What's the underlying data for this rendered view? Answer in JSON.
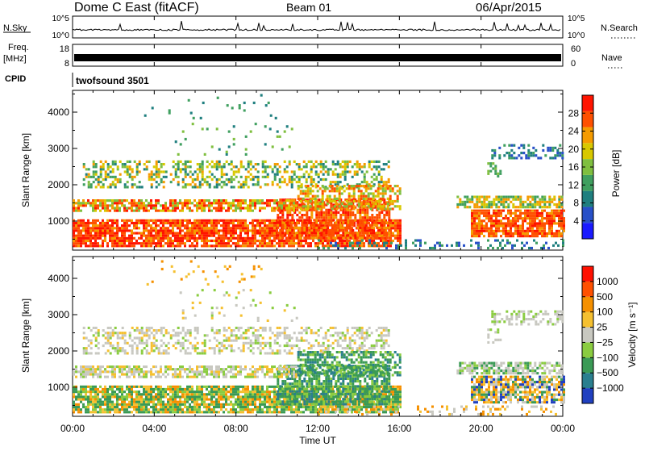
{
  "header": {
    "title": "Dome C East (fitACF)",
    "beam": "Beam 01",
    "date": "06/Apr/2015"
  },
  "status_panels": {
    "nsky_label": "N.Sky",
    "nsky_ticks": [
      "10^5",
      "10^0"
    ],
    "nsearch_label": "N.Search",
    "nsearch_ticks": [
      "10^5",
      "10^0"
    ],
    "freq_label_line1": "Freq.",
    "freq_label_line2": "[MHz]",
    "freq_ticks": [
      "18",
      "8"
    ],
    "nave_label": "Nave",
    "nave_ticks": [
      "60",
      "0"
    ],
    "cpid_label": "CPID",
    "cpid_value": "twofsound 3501"
  },
  "chart_data": [
    {
      "type": "heatmap",
      "panel": "power",
      "ylabel": "Slant Range [km]",
      "ylim": [
        200,
        4600
      ],
      "yticks": [
        1000,
        2000,
        3000,
        4000
      ],
      "xlim_hours": [
        0,
        24
      ],
      "colorbar": {
        "label": "Power [dB]",
        "range": [
          0,
          32
        ],
        "tick_labels": [
          "4",
          "8",
          "12",
          "16",
          "20",
          "24",
          "28"
        ],
        "tick_values": [
          4,
          8,
          12,
          16,
          20,
          24,
          28
        ],
        "colors": [
          "#1a1aff",
          "#2850c8",
          "#1f7f7f",
          "#3f9f5f",
          "#7fbf3f",
          "#d8c800",
          "#f59b00",
          "#ff5000",
          "#ff1400"
        ]
      }
    },
    {
      "type": "heatmap",
      "panel": "velocity",
      "ylabel": "Slant Range [km]",
      "ylim": [
        200,
        4600
      ],
      "yticks": [
        1000,
        2000,
        3000,
        4000
      ],
      "xlim_hours": [
        0,
        24
      ],
      "colorbar": {
        "label": "Velocity [m s⁻¹]",
        "tick_labels": [
          "1000",
          "500",
          "100",
          "25",
          "−25",
          "−100",
          "−500",
          "−1000"
        ],
        "colors": [
          "#2040c0",
          "#2a7f8f",
          "#3a9a55",
          "#8acc40",
          "#c8c8c0",
          "#f5c030",
          "#f59000",
          "#ff5000",
          "#ff1000"
        ]
      }
    }
  ],
  "xaxis": {
    "label": "Time UT",
    "tick_labels": [
      "00:00",
      "04:00",
      "08:00",
      "12:00",
      "16:00",
      "20:00",
      "00:00"
    ],
    "tick_hours": [
      0,
      4,
      8,
      12,
      16,
      20,
      24
    ]
  }
}
